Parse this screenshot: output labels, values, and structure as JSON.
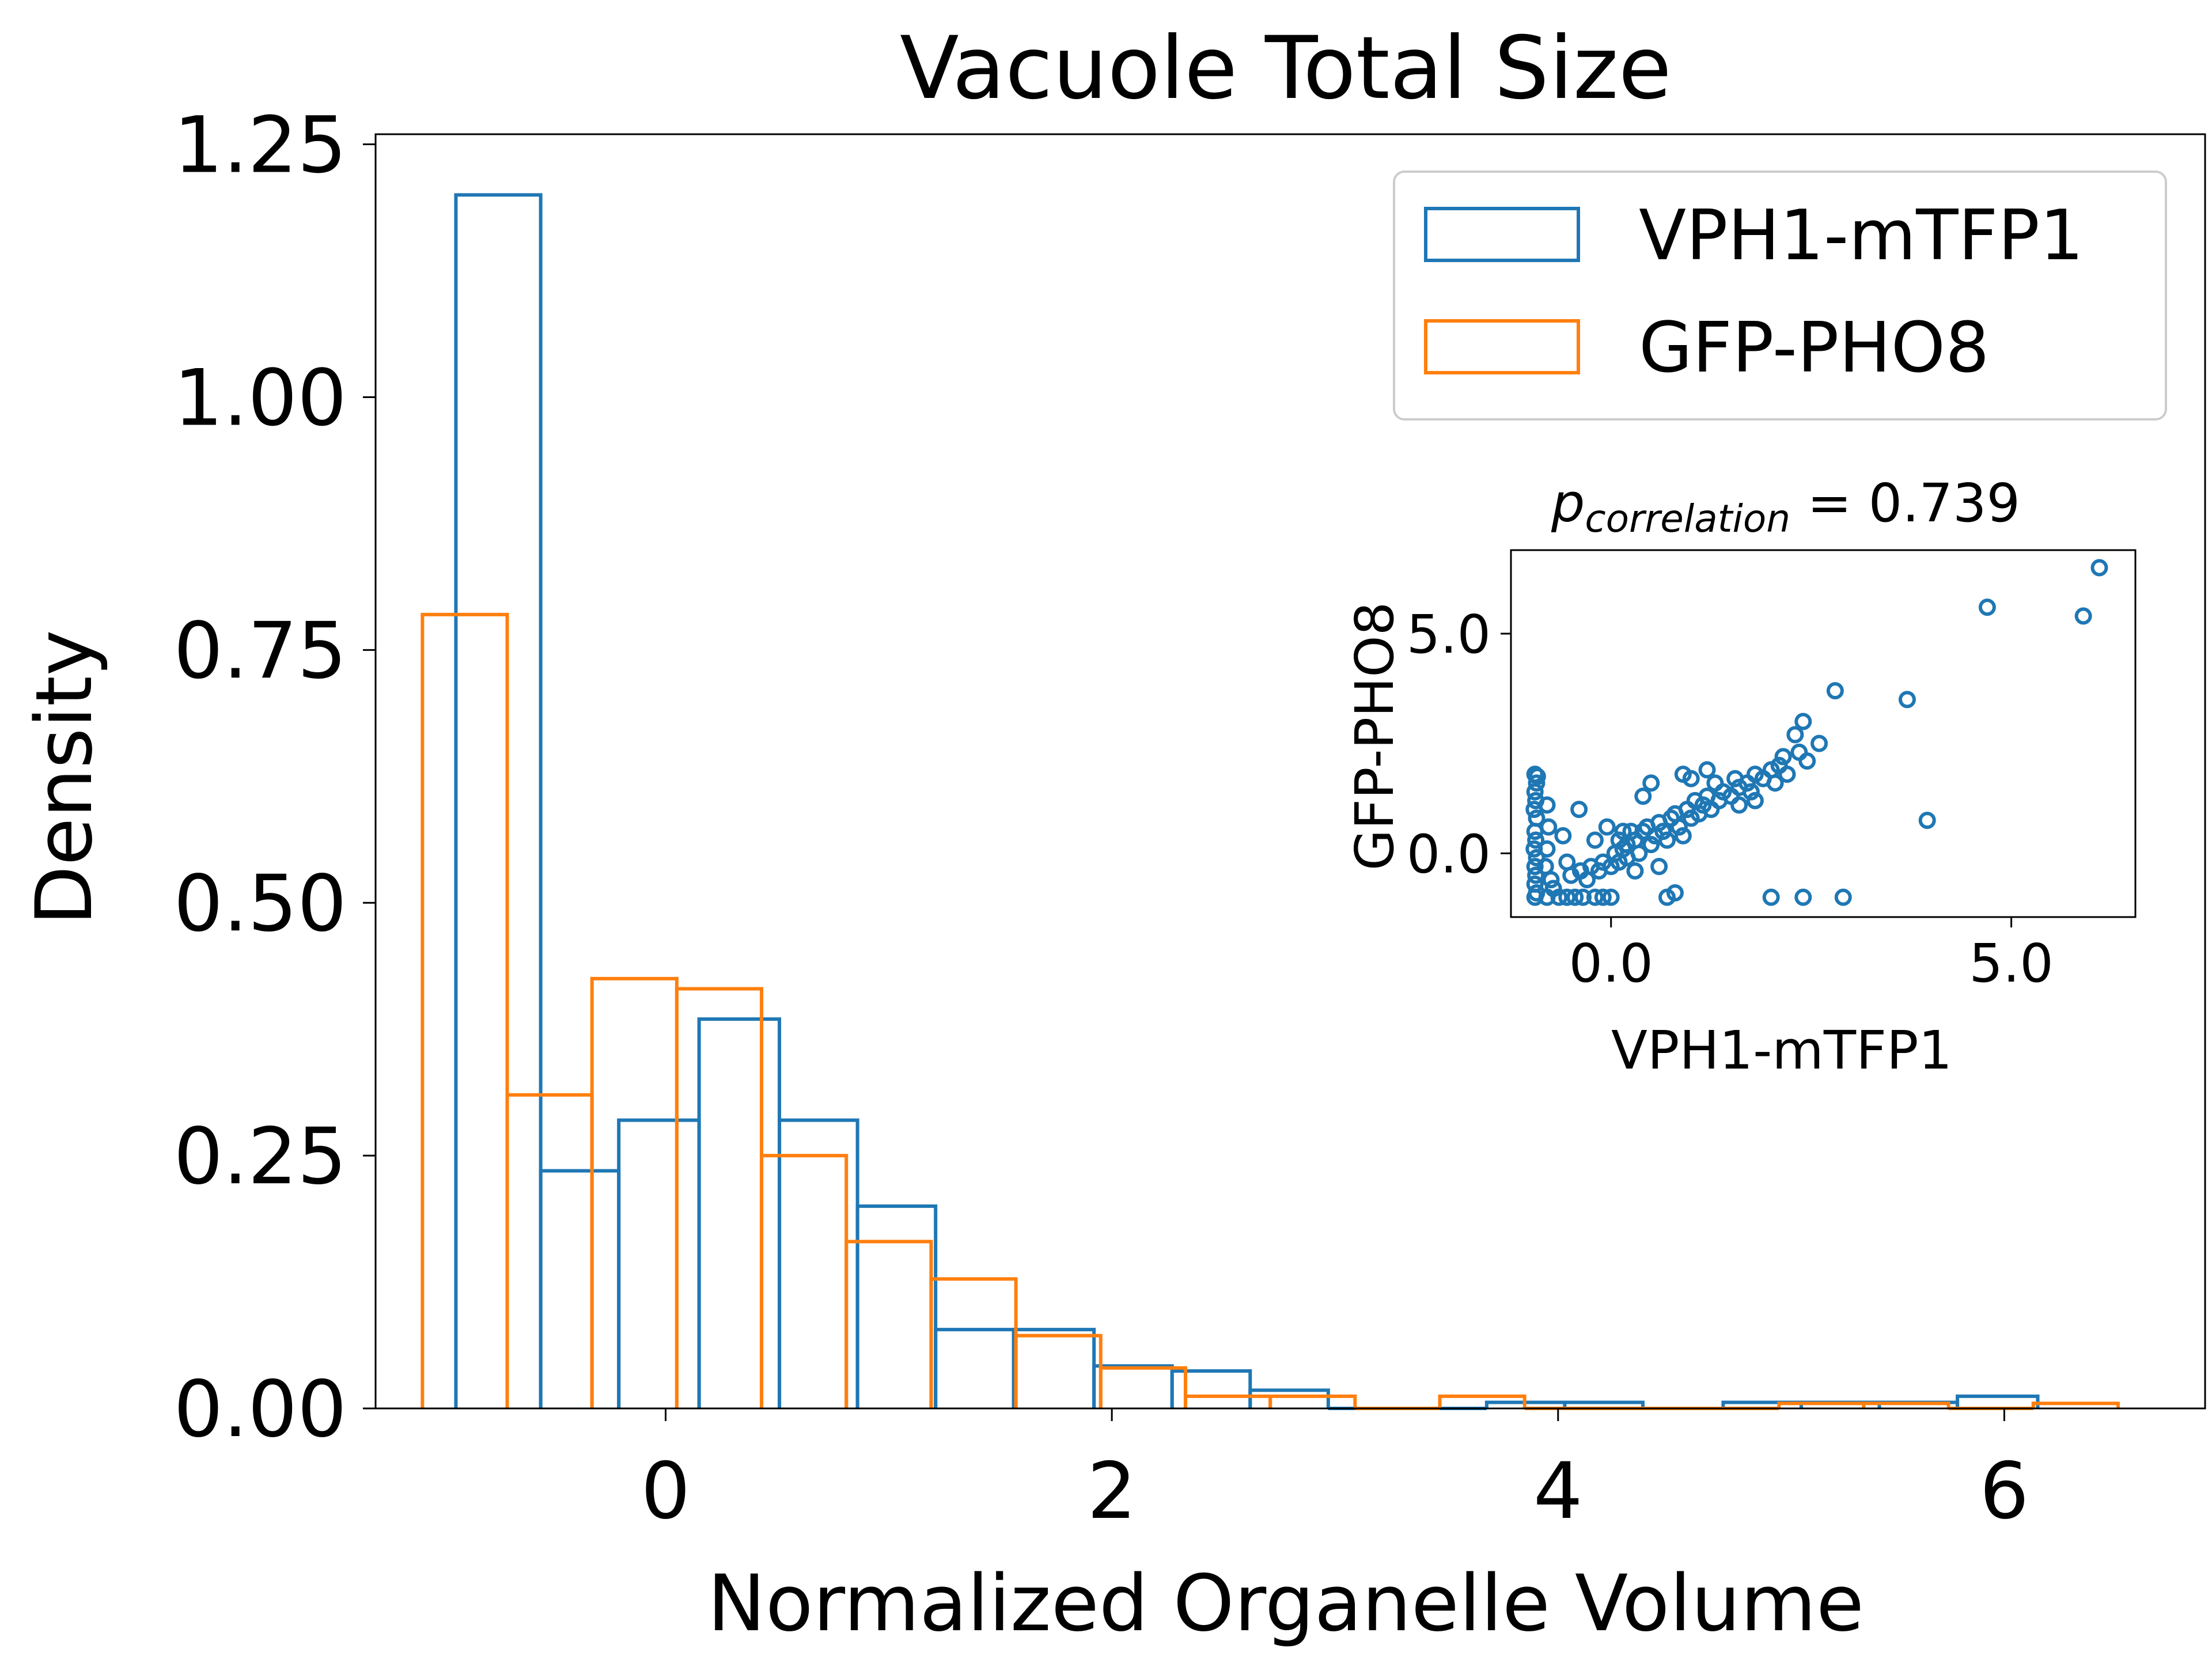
{
  "colors": {
    "series_1": "#1f77b4",
    "series_2": "#ff7f0e"
  },
  "chart_data": [
    {
      "type": "histogram",
      "title": "Vacuole Total Size",
      "xlabel": "Normalized Organelle Volume",
      "ylabel": "Density",
      "xlim": [
        -1.3,
        6.9
      ],
      "ylim": [
        0,
        1.26
      ],
      "xticks": [
        0,
        2,
        4,
        6
      ],
      "xtick_labels": [
        "0",
        "2",
        "4",
        "6"
      ],
      "yticks": [
        0,
        0.25,
        0.5,
        0.75,
        1.0,
        1.25
      ],
      "ytick_labels": [
        "0.00",
        "0.25",
        "0.50",
        "0.75",
        "1.00",
        "1.25"
      ],
      "legend_position": "upper-right",
      "series": [
        {
          "name": "VPH1-mTFP1",
          "color": "#1f77b4",
          "bins": [
            [
              -0.94,
              -0.56,
              1.2
            ],
            [
              -0.56,
              -0.21,
              0.235
            ],
            [
              -0.21,
              0.15,
              0.285
            ],
            [
              0.15,
              0.51,
              0.385
            ],
            [
              0.51,
              0.86,
              0.285
            ],
            [
              0.86,
              1.21,
              0.2
            ],
            [
              1.21,
              1.56,
              0.078
            ],
            [
              1.56,
              1.92,
              0.078
            ],
            [
              1.92,
              2.27,
              0.042
            ],
            [
              2.27,
              2.62,
              0.037
            ],
            [
              2.62,
              2.97,
              0.018
            ],
            [
              2.97,
              3.33,
              0.0
            ],
            [
              3.33,
              3.68,
              0.0
            ],
            [
              3.68,
              4.03,
              0.006
            ],
            [
              4.03,
              4.38,
              0.006
            ],
            [
              4.38,
              4.74,
              0.0
            ],
            [
              4.74,
              5.09,
              0.006
            ],
            [
              5.09,
              5.44,
              0.006
            ],
            [
              5.44,
              5.79,
              0.006
            ],
            [
              5.79,
              6.15,
              0.012
            ]
          ]
        },
        {
          "name": "GFP-PHO8",
          "color": "#ff7f0e",
          "bins": [
            [
              -1.09,
              -0.71,
              0.785
            ],
            [
              -0.71,
              -0.33,
              0.31
            ],
            [
              -0.33,
              0.05,
              0.425
            ],
            [
              0.05,
              0.43,
              0.415
            ],
            [
              0.43,
              0.81,
              0.25
            ],
            [
              0.81,
              1.19,
              0.165
            ],
            [
              1.19,
              1.57,
              0.128
            ],
            [
              1.57,
              1.95,
              0.072
            ],
            [
              1.95,
              2.33,
              0.04
            ],
            [
              2.33,
              2.71,
              0.012
            ],
            [
              2.71,
              3.09,
              0.012
            ],
            [
              3.09,
              3.47,
              0.0
            ],
            [
              3.47,
              3.85,
              0.012
            ],
            [
              3.85,
              4.23,
              0.0
            ],
            [
              4.23,
              4.61,
              0.0
            ],
            [
              4.61,
              4.99,
              0.0
            ],
            [
              4.99,
              5.37,
              0.005
            ],
            [
              5.37,
              5.75,
              0.005
            ],
            [
              5.75,
              6.13,
              0.0
            ],
            [
              6.13,
              6.51,
              0.005
            ]
          ]
        }
      ]
    },
    {
      "type": "scatter",
      "title_base": "p",
      "title_subscript": "correlation",
      "title_value": " = 0.739",
      "xlabel": "VPH1-mTFP1",
      "ylabel": "GFP-PHO8",
      "xlim": [
        -1.25,
        6.55
      ],
      "ylim": [
        -1.45,
        6.9
      ],
      "xticks": [
        0,
        5
      ],
      "xtick_labels": [
        "0.0",
        "5.0"
      ],
      "yticks": [
        0,
        5
      ],
      "ytick_labels": [
        "0.0",
        "5.0"
      ],
      "color": "#1f77b4",
      "points": [
        [
          -0.95,
          1.8
        ],
        [
          -0.92,
          1.75
        ],
        [
          -0.93,
          1.6
        ],
        [
          -0.95,
          1.4
        ],
        [
          -0.94,
          1.2
        ],
        [
          -0.96,
          1.0
        ],
        [
          -0.93,
          0.8
        ],
        [
          -0.95,
          0.5
        ],
        [
          -0.94,
          0.3
        ],
        [
          -0.96,
          0.1
        ],
        [
          -0.93,
          -0.1
        ],
        [
          -0.95,
          -0.3
        ],
        [
          -0.94,
          -0.5
        ],
        [
          -0.95,
          -0.7
        ],
        [
          -0.93,
          -0.9
        ],
        [
          -0.95,
          -1.0
        ],
        [
          -0.8,
          1.1
        ],
        [
          -0.78,
          0.6
        ],
        [
          -0.8,
          0.1
        ],
        [
          -0.82,
          -0.3
        ],
        [
          -0.75,
          -0.6
        ],
        [
          -0.8,
          -1.0
        ],
        [
          -0.72,
          -0.8
        ],
        [
          -0.65,
          -1.0
        ],
        [
          -0.6,
          0.4
        ],
        [
          -0.55,
          -0.2
        ],
        [
          -0.55,
          -1.0
        ],
        [
          -0.5,
          -0.5
        ],
        [
          -0.45,
          -1.0
        ],
        [
          -0.4,
          1.0
        ],
        [
          -0.38,
          -0.4
        ],
        [
          -0.35,
          -1.0
        ],
        [
          -0.3,
          -0.6
        ],
        [
          -0.25,
          -0.3
        ],
        [
          -0.2,
          -1.0
        ],
        [
          -0.15,
          -0.4
        ],
        [
          -0.1,
          -0.2
        ],
        [
          -0.1,
          -1.0
        ],
        [
          -0.05,
          0.6
        ],
        [
          0.0,
          -0.3
        ],
        [
          0.0,
          -1.0
        ],
        [
          0.05,
          0.0
        ],
        [
          0.1,
          -0.2
        ],
        [
          0.1,
          0.3
        ],
        [
          0.15,
          0.1
        ],
        [
          0.2,
          0.2
        ],
        [
          0.2,
          -0.1
        ],
        [
          0.25,
          0.5
        ],
        [
          0.3,
          0.3
        ],
        [
          0.35,
          0.0
        ],
        [
          0.4,
          0.5
        ],
        [
          0.45,
          0.6
        ],
        [
          0.5,
          0.2
        ],
        [
          0.55,
          0.4
        ],
        [
          0.6,
          0.7
        ],
        [
          0.65,
          0.5
        ],
        [
          0.7,
          0.3
        ],
        [
          0.75,
          0.8
        ],
        [
          0.8,
          0.9
        ],
        [
          0.85,
          0.6
        ],
        [
          0.9,
          0.4
        ],
        [
          0.95,
          1.0
        ],
        [
          1.0,
          0.8
        ],
        [
          1.05,
          1.2
        ],
        [
          1.1,
          0.9
        ],
        [
          1.15,
          1.1
        ],
        [
          1.2,
          1.3
        ],
        [
          1.25,
          1.0
        ],
        [
          1.3,
          1.6
        ],
        [
          1.35,
          1.2
        ],
        [
          1.4,
          1.4
        ],
        [
          1.5,
          1.3
        ],
        [
          1.55,
          1.7
        ],
        [
          1.6,
          1.5
        ],
        [
          1.7,
          1.6
        ],
        [
          1.75,
          1.4
        ],
        [
          1.8,
          1.8
        ],
        [
          1.9,
          1.7
        ],
        [
          2.0,
          1.9
        ],
        [
          2.05,
          1.6
        ],
        [
          2.1,
          2.0
        ],
        [
          2.15,
          2.2
        ],
        [
          2.2,
          1.8
        ],
        [
          2.3,
          2.7
        ],
        [
          2.35,
          2.3
        ],
        [
          2.4,
          3.0
        ],
        [
          2.45,
          2.1
        ],
        [
          2.6,
          2.5
        ],
        [
          2.8,
          3.7
        ],
        [
          0.4,
          1.3
        ],
        [
          0.5,
          1.6
        ],
        [
          1.0,
          1.7
        ],
        [
          1.2,
          1.9
        ],
        [
          0.9,
          1.8
        ],
        [
          0.7,
          -1.0
        ],
        [
          0.8,
          -0.9
        ],
        [
          2.0,
          -1.0
        ],
        [
          2.4,
          -1.0
        ],
        [
          2.9,
          -1.0
        ],
        [
          3.7,
          3.5
        ],
        [
          3.95,
          0.75
        ],
        [
          4.7,
          5.6
        ],
        [
          5.9,
          5.4
        ],
        [
          6.1,
          6.5
        ],
        [
          0.3,
          -0.4
        ],
        [
          0.6,
          -0.3
        ],
        [
          -0.2,
          0.3
        ],
        [
          0.15,
          0.5
        ],
        [
          1.6,
          1.1
        ],
        [
          1.8,
          1.2
        ]
      ]
    }
  ]
}
